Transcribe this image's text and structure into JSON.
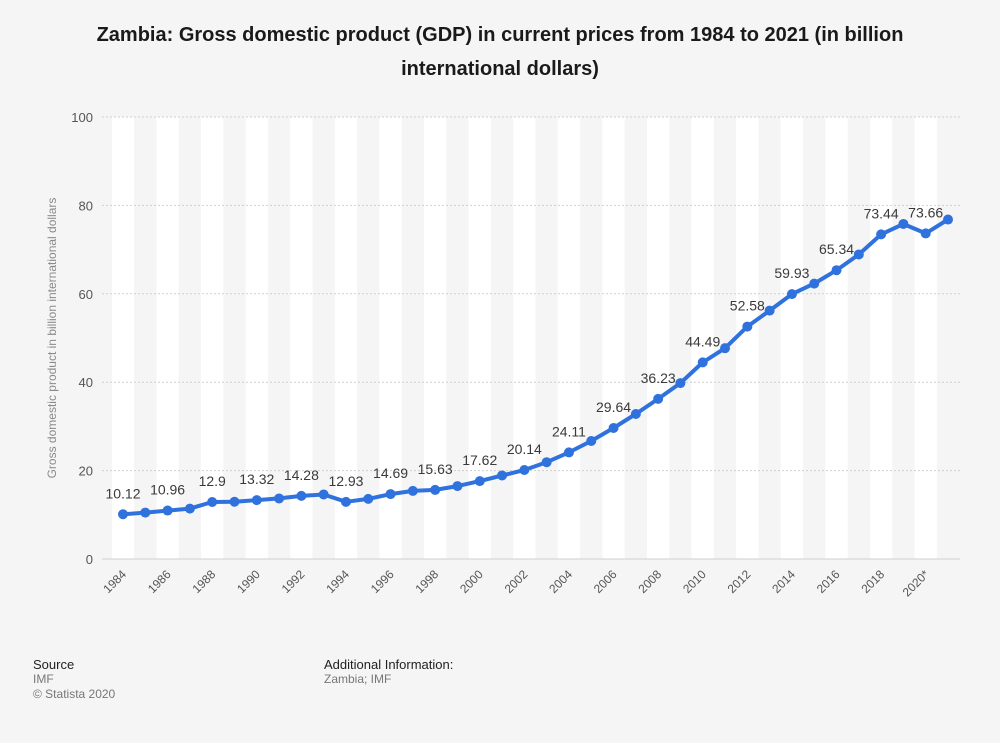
{
  "title": "Zambia: Gross domestic product (GDP) in current prices from 1984 to 2021 (in billion international dollars)",
  "footer": {
    "source_heading": "Source",
    "source_value": "IMF",
    "copyright": "© Statista 2020",
    "info_heading": "Additional Information:",
    "info_value": "Zambia; IMF"
  },
  "colors": {
    "line": "#2f72de",
    "band": "#ffffff",
    "background": "#f5f5f5"
  },
  "chart_data": {
    "type": "line",
    "title": "Zambia: Gross domestic product (GDP) in current prices from 1984 to 2021 (in billion international dollars)",
    "xlabel": "",
    "ylabel": "Gross domestic product in billion international dollars",
    "ylim": [
      0,
      100
    ],
    "yticks": [
      0,
      20,
      40,
      60,
      80,
      100
    ],
    "x": [
      "1984",
      "1985",
      "1986",
      "1987",
      "1988",
      "1989",
      "1990",
      "1991",
      "1992",
      "1993",
      "1994",
      "1995",
      "1996",
      "1997",
      "1998",
      "1999",
      "2000",
      "2001",
      "2002",
      "2003",
      "2004",
      "2005",
      "2006",
      "2007",
      "2008",
      "2009",
      "2010",
      "2011",
      "2012",
      "2013",
      "2014",
      "2015",
      "2016",
      "2017",
      "2018",
      "2019",
      "2020*",
      "2021*"
    ],
    "xtick_labels": [
      "1984",
      "1986",
      "1988",
      "1990",
      "1992",
      "1994",
      "1996",
      "1998",
      "2000",
      "2002",
      "2004",
      "2006",
      "2008",
      "2010",
      "2012",
      "2014",
      "2016",
      "2018",
      "2020*"
    ],
    "series": [
      {
        "name": "GDP",
        "values": [
          10.12,
          10.5,
          10.96,
          11.4,
          12.9,
          12.95,
          13.32,
          13.7,
          14.28,
          14.6,
          12.93,
          13.6,
          14.69,
          15.4,
          15.63,
          16.5,
          17.62,
          18.9,
          20.14,
          21.9,
          24.11,
          26.7,
          29.64,
          32.8,
          36.23,
          39.8,
          44.49,
          47.7,
          52.58,
          56.2,
          59.93,
          62.3,
          65.34,
          68.9,
          73.44,
          75.8,
          73.66,
          76.8
        ]
      }
    ],
    "data_labels": [
      {
        "index": 0,
        "text": "10.12"
      },
      {
        "index": 2,
        "text": "10.96"
      },
      {
        "index": 4,
        "text": "12.9"
      },
      {
        "index": 6,
        "text": "13.32"
      },
      {
        "index": 8,
        "text": "14.28"
      },
      {
        "index": 10,
        "text": "12.93"
      },
      {
        "index": 12,
        "text": "14.69"
      },
      {
        "index": 14,
        "text": "15.63"
      },
      {
        "index": 16,
        "text": "17.62"
      },
      {
        "index": 18,
        "text": "20.14"
      },
      {
        "index": 20,
        "text": "24.11"
      },
      {
        "index": 22,
        "text": "29.64"
      },
      {
        "index": 24,
        "text": "36.23"
      },
      {
        "index": 26,
        "text": "44.49"
      },
      {
        "index": 28,
        "text": "52.58"
      },
      {
        "index": 30,
        "text": "59.93"
      },
      {
        "index": 32,
        "text": "65.34"
      },
      {
        "index": 34,
        "text": "73.44"
      },
      {
        "index": 36,
        "text": "73.66"
      }
    ],
    "grid": true,
    "legend": "none"
  }
}
